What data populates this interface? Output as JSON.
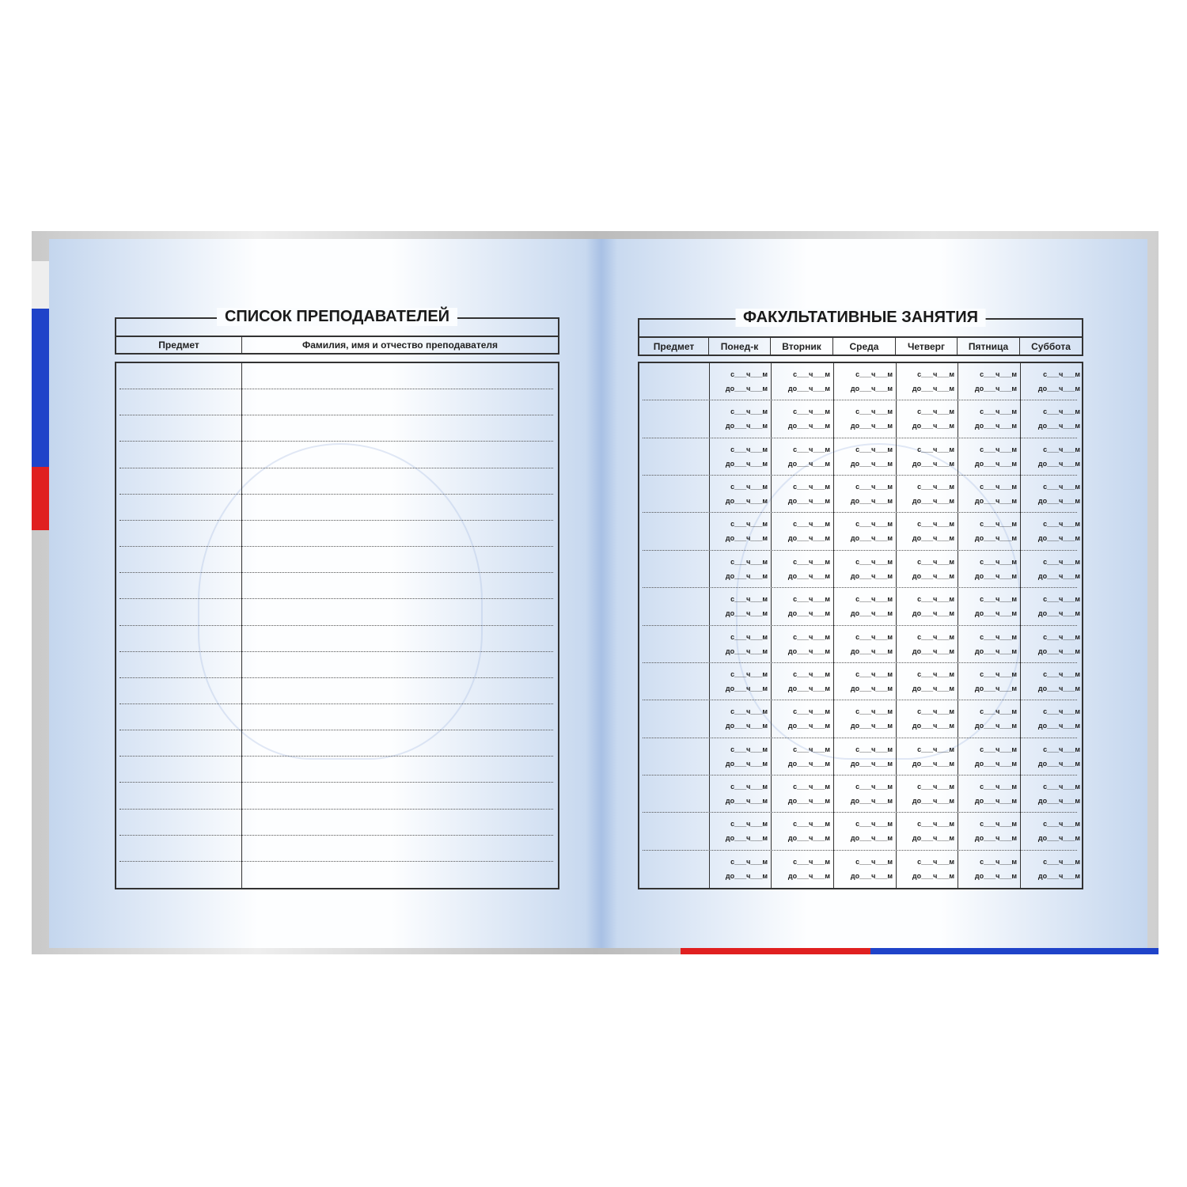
{
  "left_page": {
    "title": "СПИСОК ПРЕПОДАВАТЕЛЕЙ",
    "columns": [
      "Предмет",
      "Фамилия, имя и отчество преподавателя"
    ],
    "row_count": 20
  },
  "right_page": {
    "title": "ФАКУЛЬТАТИВНЫЕ ЗАНЯТИЯ",
    "columns": [
      "Предмет",
      "Понед-к",
      "Вторник",
      "Среда",
      "Четверг",
      "Пятница",
      "Суббота"
    ],
    "row_count": 14,
    "time_from": "с___ч___м",
    "time_to": "до___ч___м"
  },
  "colors": {
    "flag_white": "#f2f2f2",
    "flag_blue": "#1f43c9",
    "flag_red": "#e02020",
    "page_blue": "#c4d6ee"
  }
}
